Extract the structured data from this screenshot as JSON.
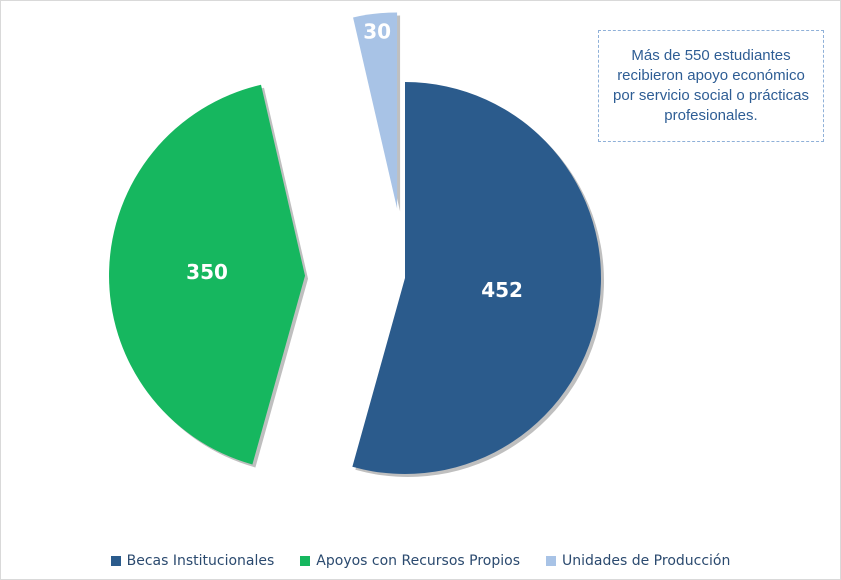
{
  "chart_data": {
    "type": "pie",
    "categories": [
      "Becas Institucionales",
      "Apoyos con Recursos Propios",
      "Unidades de Producción"
    ],
    "values": [
      452,
      350,
      30
    ],
    "colors": [
      "#2b5b8c",
      "#16b75f",
      "#a8c3e6"
    ],
    "annotation": "Más de 550 estudiantes recibieron apoyo económico por servicio social o prácticas profesionales.",
    "legend": "bottom"
  }
}
